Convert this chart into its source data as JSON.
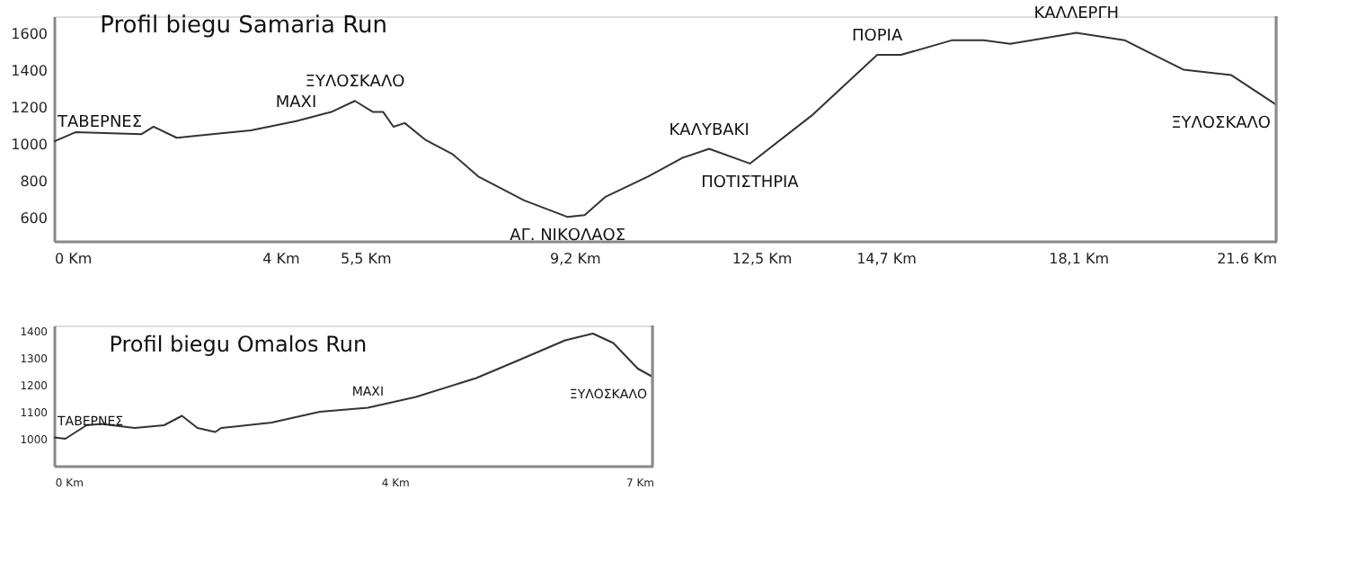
{
  "chart_data": [
    {
      "type": "line",
      "title": "Profil biegu Samaria Run",
      "color": "#333333",
      "grid": false,
      "x": [
        0,
        0.38,
        1.55,
        1.76,
        2.17,
        3.48,
        4.28,
        4.9,
        5.32,
        5.64,
        5.82,
        6.0,
        6.2,
        6.56,
        7.05,
        7.5,
        8.31,
        9.08,
        9.38,
        9.75,
        10.5,
        11.1,
        11.58,
        12.3,
        13.39,
        14.55,
        14.97,
        15.88,
        16.43,
        16.9,
        18.07,
        18.92,
        19.96,
        20.81,
        21.6
      ],
      "values": [
        1020,
        1070,
        1060,
        1100,
        1040,
        1080,
        1130,
        1180,
        1240,
        1180,
        1180,
        1100,
        1120,
        1030,
        950,
        830,
        700,
        610,
        620,
        720,
        830,
        930,
        980,
        900,
        1160,
        1490,
        1490,
        1570,
        1570,
        1550,
        1610,
        1570,
        1410,
        1380,
        1220
      ],
      "xlim": [
        0,
        21.6
      ],
      "ylim": [
        480,
        1700
      ],
      "xticks": [
        {
          "value": 0,
          "label": "0 Km"
        },
        {
          "value": 4,
          "label": "4 Km"
        },
        {
          "value": 5.5,
          "label": "5,5 Km"
        },
        {
          "value": 9.2,
          "label": "9,2 Km"
        },
        {
          "value": 12.5,
          "label": "12,5 Km"
        },
        {
          "value": 14.7,
          "label": "14,7 Km"
        },
        {
          "value": 18.1,
          "label": "18,1 Km"
        },
        {
          "value": 21.6,
          "label": "21.6 Km"
        }
      ],
      "yticks": [
        600,
        800,
        1000,
        1200,
        1400,
        1600
      ],
      "annotations": [
        {
          "text": "ΤΑΒΕΡΝΕΣ",
          "x": 0,
          "y": 1020
        },
        {
          "text": "ΜΑΧΙ",
          "x": 4.28,
          "y": 1130
        },
        {
          "text": "ΞΥΛΟΣΚΑΛΟ",
          "x": 5.32,
          "y": 1240
        },
        {
          "text": "ΑΓ. ΝΙΚΟΛΑΟΣ",
          "x": 9.08,
          "y": 610
        },
        {
          "text": "ΚΑΛΥΒΑΚΙ",
          "x": 11.58,
          "y": 980
        },
        {
          "text": "ΠΟΤΙΣΤΗΡΙΑ",
          "x": 12.3,
          "y": 900
        },
        {
          "text": "ΠΟΡΙΑ",
          "x": 14.55,
          "y": 1490
        },
        {
          "text": "ΚΑΛΛΕΡΓΗ",
          "x": 18.07,
          "y": 1610
        },
        {
          "text": "ΞΥΛΟΣΚΑΛΟ",
          "x": 21.6,
          "y": 1220
        }
      ]
    },
    {
      "type": "line",
      "title": "Profil biegu Omalos Run",
      "color": "#333333",
      "grid": false,
      "x": [
        -0.18,
        -0.04,
        0.22,
        0.4,
        0.81,
        1.17,
        1.39,
        1.58,
        1.8,
        1.87,
        2.49,
        3.08,
        3.67,
        4.26,
        5.0,
        5.51,
        6.09,
        6.43,
        6.68,
        6.98,
        7.16
      ],
      "values": [
        1005,
        1000,
        1050,
        1055,
        1040,
        1050,
        1085,
        1040,
        1025,
        1040,
        1060,
        1100,
        1115,
        1155,
        1225,
        1290,
        1365,
        1390,
        1355,
        1260,
        1230
      ],
      "xlim": [
        -0.18,
        7.16
      ],
      "ylim": [
        900,
        1420
      ],
      "xticks": [
        {
          "value": 0,
          "label": "0 Km"
        },
        {
          "value": 4,
          "label": "4 Km"
        },
        {
          "value": 7,
          "label": "7 Km"
        }
      ],
      "yticks": [
        1000,
        1100,
        1200,
        1300,
        1400
      ],
      "annotations": [
        {
          "text": "ΤΑΒΕΡΝΕΣ",
          "x": -0.18,
          "y": 1005
        },
        {
          "text": "ΜΑΧΙ",
          "x": 3.67,
          "y": 1115
        },
        {
          "text": "ΞΥΛΟΣΚΑΛΟ",
          "x": 7.16,
          "y": 1230
        }
      ]
    }
  ]
}
